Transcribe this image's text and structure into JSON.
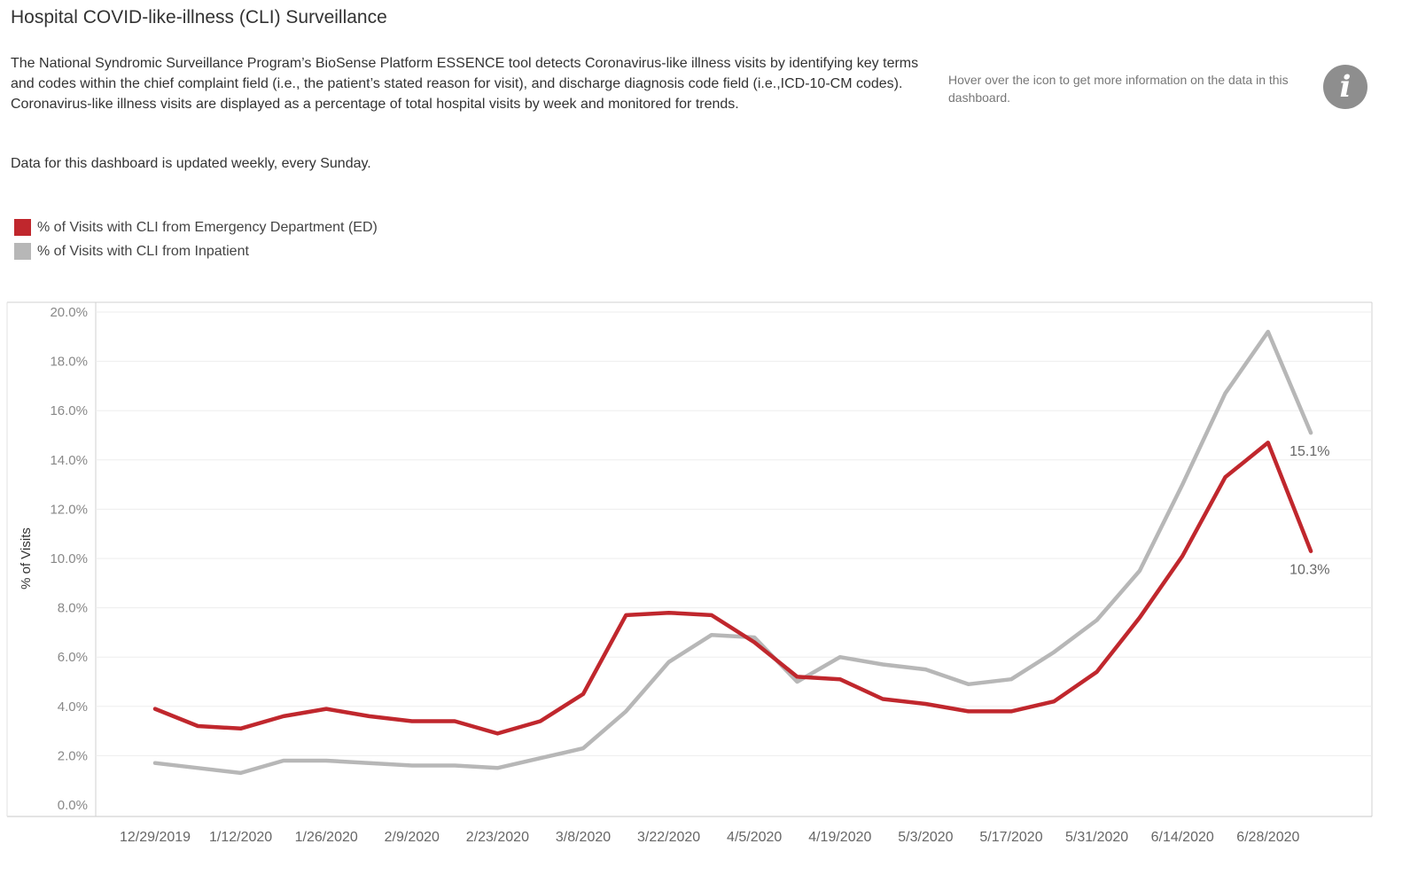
{
  "header": {
    "title": "Hospital COVID-like-illness (CLI) Surveillance",
    "description": "The National Syndromic Surveillance Program’s BioSense Platform ESSENCE tool detects Coronavirus-like illness visits by identifying key terms and codes within the chief complaint field (i.e., the patient’s stated reason for visit), and discharge diagnosis code field (i.e.,ICD-10-CM codes).  Coronavirus-like illness visits are displayed as a percentage of total hospital visits by week and monitored for trends.",
    "update_note": "Data for this dashboard is updated weekly, every Sunday.",
    "hover_note": "Hover over the icon to get more information on the data in this dashboard.",
    "info_icon_glyph": "i"
  },
  "legend": {
    "items": [
      {
        "label": "% of Visits with CLI from Emergency Department (ED)",
        "color": "#c0272d"
      },
      {
        "label": "% of Visits with CLI from Inpatient",
        "color": "#b7b7b7"
      }
    ]
  },
  "chart_data": {
    "type": "line",
    "title": "",
    "xlabel": "",
    "ylabel": "% of Visits",
    "ylim": [
      0,
      20
    ],
    "yticks": [
      "0.0%",
      "2.0%",
      "4.0%",
      "6.0%",
      "8.0%",
      "10.0%",
      "12.0%",
      "14.0%",
      "16.0%",
      "18.0%",
      "20.0%"
    ],
    "x_tick_labels": [
      "12/29/2019",
      "1/12/2020",
      "1/26/2020",
      "2/9/2020",
      "2/23/2020",
      "3/8/2020",
      "3/22/2020",
      "4/5/2020",
      "4/19/2020",
      "5/3/2020",
      "5/17/2020",
      "5/31/2020",
      "6/14/2020",
      "6/28/2020"
    ],
    "series": [
      {
        "name": "% of Visits with CLI from Emergency Department (ED)",
        "color": "#c0272d",
        "values": [
          3.9,
          3.2,
          3.1,
          3.6,
          3.9,
          3.6,
          3.4,
          3.4,
          2.9,
          3.4,
          4.5,
          7.7,
          7.8,
          7.7,
          6.6,
          5.2,
          5.1,
          4.3,
          4.1,
          3.8,
          3.8,
          4.2,
          5.4,
          7.6,
          10.1,
          13.3,
          14.7,
          10.3
        ],
        "end_label": "10.3%"
      },
      {
        "name": "% of Visits with CLI from Inpatient",
        "color": "#b7b7b7",
        "values": [
          1.7,
          1.5,
          1.3,
          1.8,
          1.8,
          1.7,
          1.6,
          1.6,
          1.5,
          1.9,
          2.3,
          3.8,
          5.8,
          6.9,
          6.8,
          5.0,
          6.0,
          5.7,
          5.5,
          4.9,
          5.1,
          6.2,
          7.5,
          9.5,
          13.0,
          16.7,
          19.2,
          15.1
        ],
        "end_label": "15.1%"
      }
    ]
  }
}
